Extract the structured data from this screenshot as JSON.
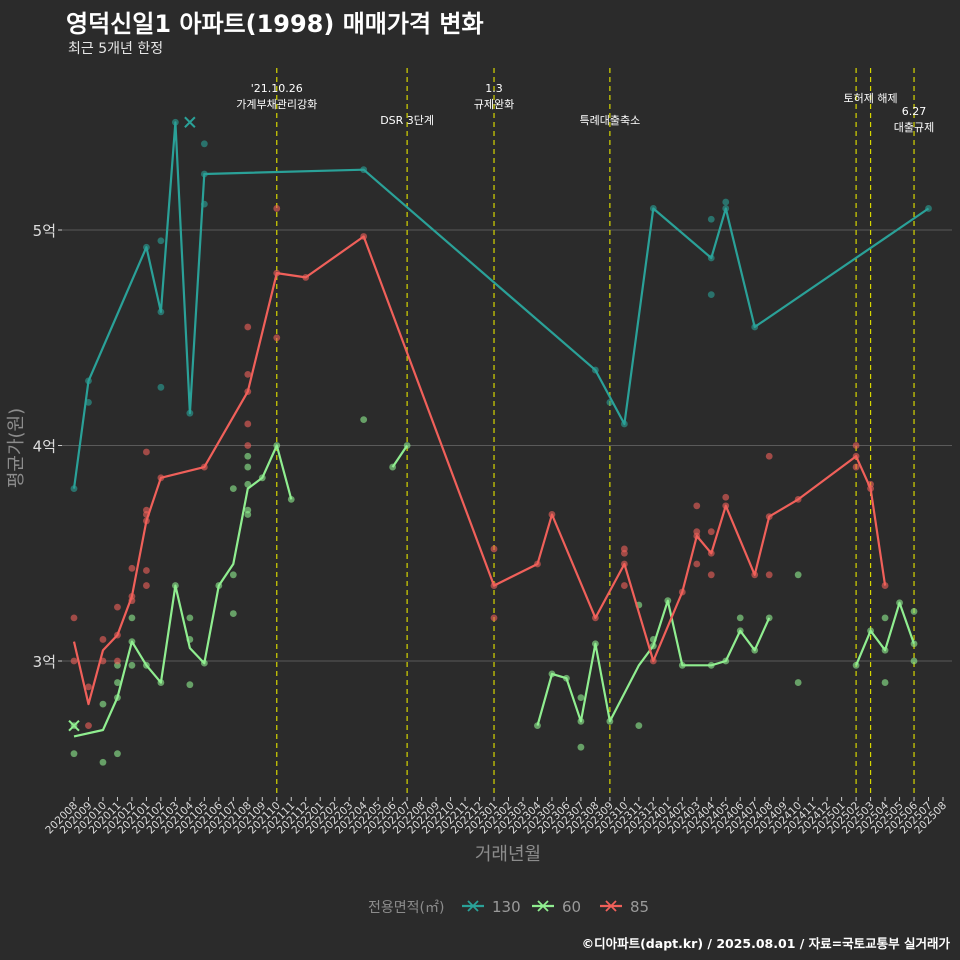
{
  "header": {
    "title": "영덕신일1 아파트(1998) 매매가격 변화",
    "subtitle": "최근 5개년 한정"
  },
  "footer": {
    "caption": "©디아파트(dapt.kr) / 2025.08.01 / 자료=국토교통부 실거래가"
  },
  "colors": {
    "background": "#2b2b2b",
    "grid": "#5a5a5a",
    "event_line": "#d6d600",
    "s130": "#2aa198",
    "s60": "#90ee90",
    "s85": "#f0605a"
  },
  "chart_data": {
    "type": "line",
    "xlabel": "거래년월",
    "ylabel": "평균가(원)",
    "x_categories": [
      "202008",
      "202009",
      "202010",
      "202011",
      "202012",
      "202101",
      "202102",
      "202103",
      "202104",
      "202105",
      "202106",
      "202107",
      "202108",
      "202109",
      "202110",
      "202111",
      "202112",
      "202201",
      "202202",
      "202203",
      "202204",
      "202205",
      "202206",
      "202207",
      "202208",
      "202209",
      "202210",
      "202211",
      "202212",
      "202301",
      "202302",
      "202303",
      "202304",
      "202305",
      "202306",
      "202307",
      "202308",
      "202309",
      "202310",
      "202311",
      "202312",
      "202401",
      "202402",
      "202403",
      "202404",
      "202405",
      "202406",
      "202407",
      "202408",
      "202409",
      "202410",
      "202411",
      "202412",
      "202501",
      "202502",
      "202503",
      "202504",
      "202505",
      "202506",
      "202507",
      "202508"
    ],
    "y_ticks": [
      {
        "value": 3.0,
        "label": "3억"
      },
      {
        "value": 4.0,
        "label": "4억"
      },
      {
        "value": 5.0,
        "label": "5억"
      }
    ],
    "ylim": [
      2.38,
      5.67
    ],
    "grid": true,
    "legend": {
      "title": "전용면적(㎡)",
      "position": "bottom",
      "entries": [
        {
          "label": "130",
          "series": "s130"
        },
        {
          "label": "60",
          "series": "s60"
        },
        {
          "label": "85",
          "series": "s85"
        }
      ]
    },
    "events": [
      {
        "x": "202110",
        "lines": [
          "'21.10.26",
          "가계부채관리강화"
        ],
        "row": 0
      },
      {
        "x": "202207",
        "lines": [
          "DSR 3단계"
        ],
        "row": 1
      },
      {
        "x": "202301",
        "lines": [
          "1.3",
          "규제완화"
        ],
        "row": 0
      },
      {
        "x": "202309",
        "lines": [
          "특례대출축소"
        ],
        "row": 1
      },
      {
        "x": "202502",
        "lines": [],
        "row": 0
      },
      {
        "x": "202503",
        "lines": [
          "토허제 해제"
        ],
        "row": 0
      },
      {
        "x": "202506",
        "lines": [
          "6.27",
          "대출규제"
        ],
        "row": 2
      }
    ],
    "series": [
      {
        "key": "s130",
        "line": [
          [
            "202008",
            3.8
          ],
          [
            "202009",
            4.3
          ],
          [
            "202101",
            4.92
          ],
          [
            "202102",
            4.62
          ],
          [
            "202103",
            5.5
          ],
          [
            "202104",
            4.15
          ],
          [
            "202105",
            5.26
          ],
          [
            "202204",
            5.28
          ],
          [
            "202308",
            4.35
          ],
          [
            "202310",
            4.1
          ],
          [
            "202312",
            5.1
          ],
          [
            "202404",
            4.87
          ],
          [
            "202405",
            5.1
          ],
          [
            "202407",
            4.55
          ],
          [
            "202507",
            5.1
          ]
        ],
        "points": [
          [
            "202008",
            3.8
          ],
          [
            "202009",
            4.3
          ],
          [
            "202009",
            4.2
          ],
          [
            "202101",
            4.92
          ],
          [
            "202102",
            4.95
          ],
          [
            "202102",
            4.27
          ],
          [
            "202102",
            4.62
          ],
          [
            "202103",
            5.5
          ],
          [
            "202104",
            4.15
          ],
          [
            "202105",
            5.4
          ],
          [
            "202105",
            5.12
          ],
          [
            "202105",
            5.26
          ],
          [
            "202204",
            5.28
          ],
          [
            "202308",
            4.35
          ],
          [
            "202309",
            4.2
          ],
          [
            "202310",
            4.1
          ],
          [
            "202312",
            5.1
          ],
          [
            "202404",
            5.05
          ],
          [
            "202404",
            4.7
          ],
          [
            "202404",
            4.87
          ],
          [
            "202405",
            5.13
          ],
          [
            "202405",
            5.1
          ],
          [
            "202407",
            4.55
          ],
          [
            "202507",
            5.1
          ]
        ],
        "cross": [
          [
            "202104",
            5.5
          ]
        ]
      },
      {
        "key": "s60",
        "line": [
          [
            "202008",
            2.65
          ],
          [
            "202010",
            2.68
          ],
          [
            "202011",
            2.83
          ],
          [
            "202012",
            3.09
          ],
          [
            "202101",
            2.98
          ],
          [
            "202102",
            2.9
          ],
          [
            "202103",
            3.35
          ],
          [
            "202104",
            3.06
          ],
          [
            "202105",
            2.99
          ],
          [
            "202106",
            3.35
          ],
          [
            "202107",
            3.45
          ],
          [
            "202108",
            3.8
          ],
          [
            "202109",
            3.85
          ],
          [
            "202110",
            4.0
          ],
          [
            "202111",
            3.75
          ]
        ],
        "line2": [
          [
            "202206",
            3.9
          ],
          [
            "202207",
            4.0
          ]
        ],
        "line3": [
          [
            "202304",
            2.7
          ],
          [
            "202305",
            2.94
          ],
          [
            "202306",
            2.92
          ],
          [
            "202307",
            2.72
          ],
          [
            "202308",
            3.08
          ],
          [
            "202309",
            2.72
          ],
          [
            "202311",
            2.98
          ],
          [
            "202312",
            3.07
          ],
          [
            "202401",
            3.28
          ],
          [
            "202402",
            2.98
          ],
          [
            "202404",
            2.98
          ],
          [
            "202405",
            3.0
          ],
          [
            "202406",
            3.14
          ],
          [
            "202407",
            3.05
          ],
          [
            "202408",
            3.2
          ]
        ],
        "line4": [
          [
            "202502",
            2.98
          ],
          [
            "202503",
            3.14
          ],
          [
            "202504",
            3.05
          ],
          [
            "202505",
            3.27
          ],
          [
            "202506",
            3.08
          ]
        ],
        "points": [
          [
            "202008",
            2.7
          ],
          [
            "202008",
            2.57
          ],
          [
            "202010",
            2.8
          ],
          [
            "202010",
            2.53
          ],
          [
            "202011",
            2.83
          ],
          [
            "202011",
            2.9
          ],
          [
            "202011",
            2.57
          ],
          [
            "202011",
            2.98
          ],
          [
            "202012",
            3.09
          ],
          [
            "202012",
            3.2
          ],
          [
            "202012",
            2.98
          ],
          [
            "202101",
            2.98
          ],
          [
            "202102",
            2.9
          ],
          [
            "202103",
            3.35
          ],
          [
            "202104",
            3.2
          ],
          [
            "202104",
            3.1
          ],
          [
            "202104",
            2.89
          ],
          [
            "202105",
            2.99
          ],
          [
            "202106",
            3.35
          ],
          [
            "202107",
            3.4
          ],
          [
            "202107",
            3.22
          ],
          [
            "202107",
            3.8
          ],
          [
            "202108",
            3.95
          ],
          [
            "202108",
            3.9
          ],
          [
            "202108",
            3.7
          ],
          [
            "202108",
            3.68
          ],
          [
            "202108",
            3.82
          ],
          [
            "202109",
            3.85
          ],
          [
            "202110",
            4.0
          ],
          [
            "202111",
            3.75
          ],
          [
            "202204",
            4.12
          ],
          [
            "202206",
            3.9
          ],
          [
            "202207",
            4.0
          ],
          [
            "202304",
            2.7
          ],
          [
            "202305",
            2.94
          ],
          [
            "202306",
            2.92
          ],
          [
            "202307",
            2.72
          ],
          [
            "202307",
            2.83
          ],
          [
            "202307",
            2.6
          ],
          [
            "202308",
            3.08
          ],
          [
            "202309",
            2.72
          ],
          [
            "202311",
            3.26
          ],
          [
            "202311",
            2.7
          ],
          [
            "202312",
            3.07
          ],
          [
            "202312",
            3.1
          ],
          [
            "202401",
            3.28
          ],
          [
            "202402",
            2.98
          ],
          [
            "202404",
            2.98
          ],
          [
            "202405",
            3.0
          ],
          [
            "202406",
            3.2
          ],
          [
            "202406",
            3.14
          ],
          [
            "202407",
            3.05
          ],
          [
            "202408",
            3.2
          ],
          [
            "202410",
            3.4
          ],
          [
            "202410",
            2.9
          ],
          [
            "202502",
            2.98
          ],
          [
            "202503",
            3.14
          ],
          [
            "202504",
            3.2
          ],
          [
            "202504",
            2.9
          ],
          [
            "202504",
            3.05
          ],
          [
            "202505",
            3.27
          ],
          [
            "202506",
            3.0
          ],
          [
            "202506",
            3.08
          ],
          [
            "202506",
            3.23
          ]
        ],
        "cross": [
          [
            "202008",
            2.7
          ]
        ]
      },
      {
        "key": "s85",
        "line": [
          [
            "202008",
            3.09
          ],
          [
            "202009",
            2.8
          ],
          [
            "202010",
            3.05
          ],
          [
            "202011",
            3.12
          ],
          [
            "202012",
            3.3
          ],
          [
            "202101",
            3.65
          ],
          [
            "202102",
            3.85
          ],
          [
            "202105",
            3.9
          ],
          [
            "202108",
            4.25
          ],
          [
            "202110",
            4.8
          ],
          [
            "202112",
            4.78
          ],
          [
            "202204",
            4.97
          ],
          [
            "202301",
            3.35
          ],
          [
            "202304",
            3.45
          ],
          [
            "202305",
            3.68
          ],
          [
            "202308",
            3.2
          ],
          [
            "202310",
            3.45
          ],
          [
            "202312",
            3.0
          ],
          [
            "202402",
            3.32
          ],
          [
            "202403",
            3.58
          ],
          [
            "202404",
            3.5
          ],
          [
            "202405",
            3.72
          ],
          [
            "202407",
            3.4
          ],
          [
            "202408",
            3.67
          ],
          [
            "202410",
            3.75
          ],
          [
            "202502",
            3.95
          ],
          [
            "202503",
            3.8
          ],
          [
            "202504",
            3.35
          ]
        ],
        "points": [
          [
            "202008",
            3.2
          ],
          [
            "202008",
            3.0
          ],
          [
            "202009",
            2.7
          ],
          [
            "202009",
            2.88
          ],
          [
            "202010",
            3.1
          ],
          [
            "202010",
            3.0
          ],
          [
            "202011",
            3.25
          ],
          [
            "202011",
            3.0
          ],
          [
            "202011",
            3.12
          ],
          [
            "202012",
            3.43
          ],
          [
            "202012",
            3.3
          ],
          [
            "202012",
            3.28
          ],
          [
            "202101",
            3.97
          ],
          [
            "202101",
            3.7
          ],
          [
            "202101",
            3.68
          ],
          [
            "202101",
            3.42
          ],
          [
            "202101",
            3.35
          ],
          [
            "202101",
            3.65
          ],
          [
            "202102",
            3.85
          ],
          [
            "202105",
            3.9
          ],
          [
            "202108",
            4.55
          ],
          [
            "202108",
            4.33
          ],
          [
            "202108",
            4.1
          ],
          [
            "202108",
            4.0
          ],
          [
            "202108",
            4.25
          ],
          [
            "202110",
            5.1
          ],
          [
            "202110",
            4.5
          ],
          [
            "202110",
            4.8
          ],
          [
            "202112",
            4.78
          ],
          [
            "202204",
            4.97
          ],
          [
            "202301",
            3.52
          ],
          [
            "202301",
            3.2
          ],
          [
            "202301",
            3.35
          ],
          [
            "202304",
            3.45
          ],
          [
            "202305",
            3.68
          ],
          [
            "202308",
            3.2
          ],
          [
            "202310",
            3.52
          ],
          [
            "202310",
            3.5
          ],
          [
            "202310",
            3.35
          ],
          [
            "202310",
            3.45
          ],
          [
            "202312",
            3.0
          ],
          [
            "202402",
            3.32
          ],
          [
            "202403",
            3.72
          ],
          [
            "202403",
            3.6
          ],
          [
            "202403",
            3.45
          ],
          [
            "202403",
            3.58
          ],
          [
            "202404",
            3.6
          ],
          [
            "202404",
            3.4
          ],
          [
            "202404",
            3.5
          ],
          [
            "202405",
            3.76
          ],
          [
            "202405",
            3.72
          ],
          [
            "202407",
            3.4
          ],
          [
            "202408",
            3.95
          ],
          [
            "202408",
            3.4
          ],
          [
            "202408",
            3.67
          ],
          [
            "202410",
            3.75
          ],
          [
            "202502",
            4.0
          ],
          [
            "202502",
            3.9
          ],
          [
            "202502",
            3.95
          ],
          [
            "202503",
            3.82
          ],
          [
            "202503",
            3.8
          ],
          [
            "202504",
            3.35
          ]
        ],
        "cross": []
      }
    ]
  }
}
